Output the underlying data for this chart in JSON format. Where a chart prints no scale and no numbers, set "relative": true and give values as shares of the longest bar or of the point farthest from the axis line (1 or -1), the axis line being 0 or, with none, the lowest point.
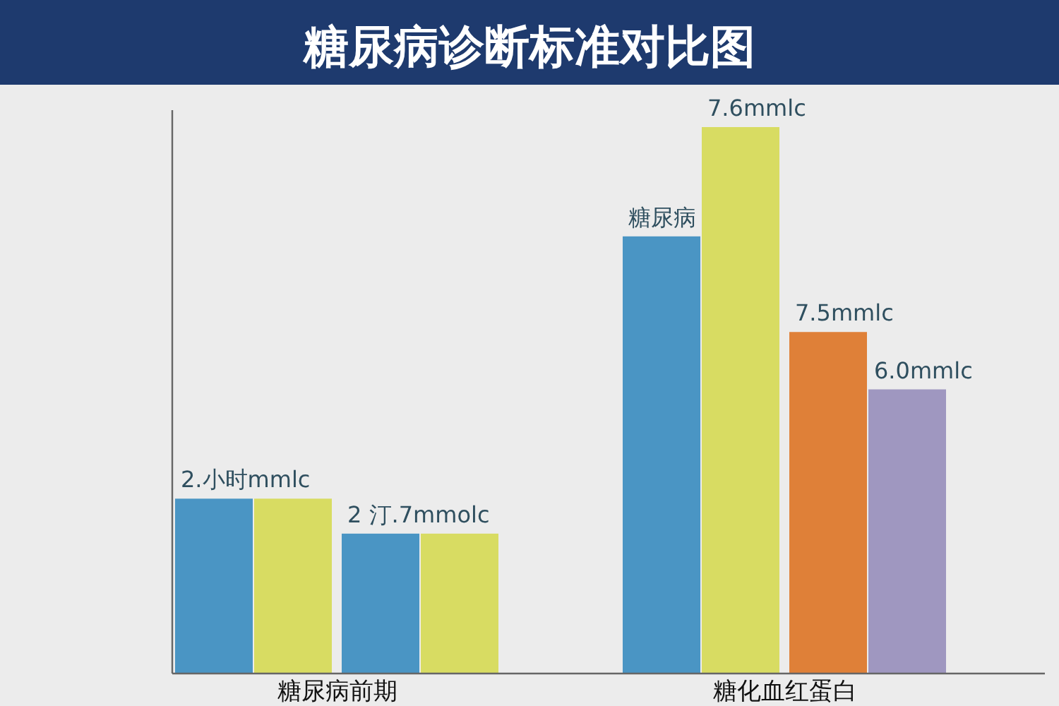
{
  "chart_data": {
    "type": "bar",
    "title": "糖尿病诊断标准对比图",
    "relative": true,
    "categories": [
      "糖尿病前期",
      "糖化血红蛋白"
    ],
    "series": [
      {
        "color": "#4a95c4",
        "values": [
          0.32,
          0.8
        ]
      },
      {
        "color": "#d8dc62",
        "values": [
          0.32,
          1.0
        ]
      },
      {
        "colors": [
          "#4a95c4",
          "#df8038"
        ],
        "values": [
          0.256,
          0.625
        ]
      },
      {
        "colors": [
          "#d8dc62",
          "#9f97c0"
        ],
        "values": [
          0.256,
          0.52
        ]
      }
    ],
    "annotations": [
      {
        "text": "2.小时mmlc",
        "x": "糖尿病前期",
        "y": 0.32
      },
      {
        "text": "2 汀.7mmolc",
        "x": "糖尿病前期",
        "y": 0.256
      },
      "糖尿病",
      {
        "text": "7.6mmlc",
        "x": "糖化血红蛋白",
        "y": 1.0
      },
      {
        "text": "7.5mmlc",
        "x": "糖化血红蛋白",
        "y": 0.625
      },
      "6.0mmlc"
    ]
  }
}
